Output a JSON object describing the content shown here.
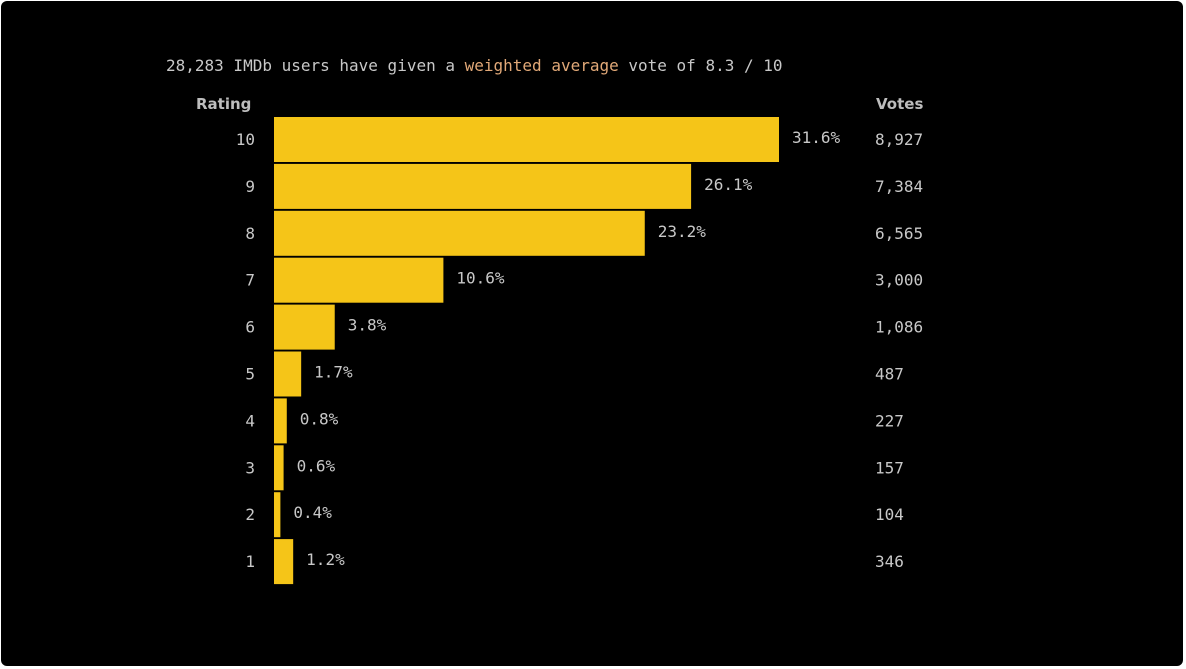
{
  "summary": {
    "prefix": "28,283 IMDb users have given a ",
    "link": "weighted average",
    "suffix": " vote of 8.3 / 10"
  },
  "headers": {
    "rating": "Rating",
    "votes": "Votes"
  },
  "colors": {
    "bar": "#f5c518",
    "background": "#000000",
    "accent": "#e2a978",
    "text": "#c8c8c8"
  },
  "chart_data": {
    "type": "bar",
    "orientation": "horizontal",
    "title": "",
    "xlabel": "",
    "ylabel": "Rating",
    "categories": [
      "10",
      "9",
      "8",
      "7",
      "6",
      "5",
      "4",
      "3",
      "2",
      "1"
    ],
    "values": [
      31.6,
      26.1,
      23.2,
      10.6,
      3.8,
      1.7,
      0.8,
      0.6,
      0.4,
      1.2
    ],
    "value_labels": [
      "31.6%",
      "26.1%",
      "23.2%",
      "10.6%",
      "3.8%",
      "1.7%",
      "0.8%",
      "0.6%",
      "0.4%",
      "1.2%"
    ],
    "votes": [
      "8,927",
      "7,384",
      "6,565",
      "3,000",
      "1,086",
      "487",
      "227",
      "157",
      "104",
      "346"
    ],
    "xlim": [
      0,
      31.6
    ],
    "grid": false,
    "legend": "none"
  }
}
